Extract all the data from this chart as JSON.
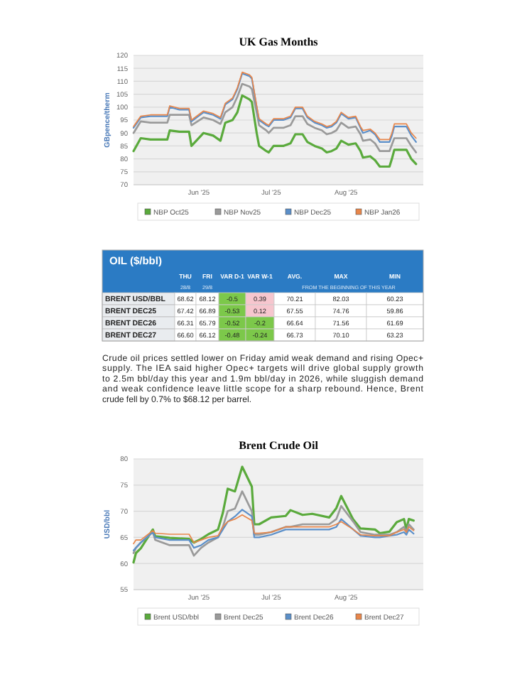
{
  "chart_data": [
    {
      "type": "line",
      "title": "UK Gas Months",
      "ylabel": "GBpence/therm",
      "ylim": [
        70,
        120
      ],
      "yticks": [
        70,
        75,
        80,
        85,
        90,
        95,
        100,
        105,
        110,
        115,
        120
      ],
      "xlim": [
        "2025-05-05",
        "2025-09-02"
      ],
      "xticks": [
        {
          "value": "2025-06-01",
          "label": "Jun '25"
        },
        {
          "value": "2025-07-01",
          "label": "Jul '25"
        },
        {
          "value": "2025-08-01",
          "label": "Aug '25"
        }
      ],
      "grid": "y",
      "legend": "bottom",
      "line_style": "solid",
      "marker": "none",
      "x": [
        "2025-05-05",
        "2025-05-08",
        "2025-05-12",
        "2025-05-19",
        "2025-05-20",
        "2025-05-24",
        "2025-05-28",
        "2025-05-29",
        "2025-06-03",
        "2025-06-07",
        "2025-06-10",
        "2025-06-12",
        "2025-06-15",
        "2025-06-17",
        "2025-06-19",
        "2025-06-22",
        "2025-06-23",
        "2025-06-25",
        "2025-06-26",
        "2025-06-29",
        "2025-06-30",
        "2025-07-02",
        "2025-07-06",
        "2025-07-09",
        "2025-07-11",
        "2025-07-14",
        "2025-07-16",
        "2025-07-19",
        "2025-07-22",
        "2025-07-24",
        "2025-07-26",
        "2025-07-28",
        "2025-07-30",
        "2025-08-02",
        "2025-08-05",
        "2025-08-07",
        "2025-08-08",
        "2025-08-11",
        "2025-08-13",
        "2025-08-15",
        "2025-08-19",
        "2025-08-20",
        "2025-08-21",
        "2025-08-26",
        "2025-08-28",
        "2025-08-30"
      ],
      "series": [
        {
          "name": "NBP Oct25",
          "color": "#5aaa3c",
          "values": [
            83,
            88,
            87.5,
            87.5,
            91,
            90.5,
            90.5,
            85,
            90,
            89,
            87,
            94,
            95,
            98,
            104.5,
            103,
            102,
            90,
            85,
            83,
            82.5,
            85,
            85,
            86,
            89.5,
            89.5,
            86.5,
            85,
            84,
            82.5,
            83,
            84,
            87,
            85.5,
            86,
            83,
            80.5,
            81,
            79.5,
            77,
            77,
            80,
            83.5,
            83.5,
            80,
            78
          ]
        },
        {
          "name": "NBP Nov25",
          "color": "#9a9a9a",
          "values": [
            90,
            94.5,
            94,
            94,
            97,
            97,
            97,
            93,
            96,
            95,
            93.5,
            98,
            100,
            104,
            109,
            108,
            107,
            98,
            93,
            91,
            90,
            92,
            92,
            93,
            96.5,
            96.5,
            93.5,
            92,
            91,
            89.5,
            90,
            91,
            94,
            92,
            92.5,
            89.5,
            87,
            87.5,
            86,
            83,
            83,
            85.5,
            88,
            88,
            85,
            82.5
          ]
        },
        {
          "name": "NBP Dec25",
          "color": "#5b8fc9",
          "values": [
            92,
            96,
            96.5,
            96.5,
            100,
            99,
            99,
            94.5,
            98,
            97,
            95.5,
            101,
            103,
            107,
            113,
            112,
            111,
            100,
            95,
            93,
            92.5,
            95,
            95,
            96,
            99.5,
            99.5,
            96,
            94,
            93,
            92,
            92.5,
            94,
            97.5,
            95.5,
            96,
            92,
            90,
            91,
            89.5,
            86.5,
            86.5,
            89,
            92.5,
            92.5,
            89,
            86.5
          ]
        },
        {
          "name": "NBP Jan26",
          "color": "#e8864a",
          "values": [
            92.5,
            96.5,
            97,
            97,
            100.5,
            99.5,
            99.5,
            95,
            98.5,
            97.5,
            96,
            101.5,
            103.5,
            107.5,
            113.5,
            112.5,
            111.5,
            100.5,
            95.5,
            93.5,
            93,
            95.5,
            95.5,
            96.5,
            100,
            100,
            96.5,
            94.5,
            93.5,
            92.5,
            93,
            94.5,
            98,
            96,
            96.5,
            92.5,
            91,
            91.5,
            90,
            87.5,
            87.5,
            90,
            93.5,
            93.5,
            90,
            88
          ]
        }
      ]
    },
    {
      "type": "other",
      "title": "OIL ($/bbl)",
      "categories": [
        "THU",
        "FRI",
        "VAR D-1",
        "VAR W-1",
        "AVG.",
        "MAX",
        "MIN"
      ],
      "y_categories": [
        "BRENT USD/BBL",
        "BRENT DEC25",
        "BRENT DEC26",
        "BRENT DEC27"
      ],
      "cell_labels": [
        [
          "68.62",
          "68.12",
          "-0.5",
          "0.39",
          "70.21",
          "82.03",
          "60.23"
        ],
        [
          "67.42",
          "66.89",
          "-0.53",
          "0.12",
          "67.55",
          "74.76",
          "59.86"
        ],
        [
          "66.31",
          "65.79",
          "-0.52",
          "-0.2",
          "66.64",
          "71.56",
          "61.69"
        ],
        [
          "66.60",
          "66.12",
          "-0.48",
          "-0.24",
          "66.73",
          "70.10",
          "63.23"
        ]
      ],
      "colors": [
        [
          "#ffffff",
          "#ffffff",
          "#7cc84a",
          "#f6c6ce",
          "#ffffff",
          "#ffffff",
          "#ffffff"
        ],
        [
          "#ffffff",
          "#ffffff",
          "#7cc84a",
          "#f6c6ce",
          "#ffffff",
          "#ffffff",
          "#ffffff"
        ],
        [
          "#ffffff",
          "#ffffff",
          "#7cc84a",
          "#7cc84a",
          "#ffffff",
          "#ffffff",
          "#ffffff"
        ],
        [
          "#ffffff",
          "#ffffff",
          "#7cc84a",
          "#7cc84a",
          "#ffffff",
          "#ffffff",
          "#ffffff"
        ]
      ],
      "annotations": [
        {
          "text": "28/8",
          "x": "THU"
        },
        {
          "text": "29/8",
          "x": "FRI"
        },
        {
          "text": "FROM THE BEGINNING OF THIS YEAR",
          "x": "AVG."
        },
        "Crude oil prices settled lower on Friday amid weak demand and rising Opec+ supply. The IEA said higher Opec+ targets will drive global supply growth to 2.5m bbl/day this year and 1.9m bbl/day in 2026, while sluggish demand and weak confidence leave little scope for a sharp rebound. Hence, Brent crude fell by 0.7% to $68.12 per barrel."
      ]
    },
    {
      "type": "line",
      "title": "Brent Crude Oil",
      "ylabel": "USD/bbl",
      "ylim": [
        55,
        80
      ],
      "yticks": [
        55,
        60,
        65,
        70,
        75,
        80
      ],
      "xlim": [
        "2025-05-05",
        "2025-09-02"
      ],
      "xticks": [
        {
          "value": "2025-06-01",
          "label": "Jun '25"
        },
        {
          "value": "2025-07-01",
          "label": "Jul '25"
        },
        {
          "value": "2025-08-01",
          "label": "Aug '25"
        }
      ],
      "grid": "y",
      "legend": "bottom",
      "line_style": "solid",
      "marker": "none",
      "x": [
        "2025-05-05",
        "2025-05-06",
        "2025-05-08",
        "2025-05-13",
        "2025-05-14",
        "2025-05-20",
        "2025-05-28",
        "2025-05-30",
        "2025-06-02",
        "2025-06-05",
        "2025-06-09",
        "2025-06-11",
        "2025-06-13",
        "2025-06-16",
        "2025-06-19",
        "2025-06-23",
        "2025-06-24",
        "2025-06-26",
        "2025-07-01",
        "2025-07-07",
        "2025-07-09",
        "2025-07-14",
        "2025-07-18",
        "2025-07-25",
        "2025-07-28",
        "2025-07-30",
        "2025-08-04",
        "2025-08-07",
        "2025-08-13",
        "2025-08-15",
        "2025-08-19",
        "2025-08-22",
        "2025-08-25",
        "2025-08-26",
        "2025-08-27",
        "2025-08-29"
      ],
      "series": [
        {
          "name": "Brent USD/bbl",
          "color": "#5aaa3c",
          "values": [
            60.2,
            62,
            62.9,
            66.5,
            65.2,
            64.9,
            64.7,
            64,
            64.7,
            65.6,
            66.5,
            69.7,
            74.3,
            73.8,
            78.5,
            74.7,
            67.5,
            67.5,
            68.8,
            69.1,
            70.2,
            69.3,
            69.5,
            68.8,
            70.6,
            72.9,
            68.4,
            66.7,
            66.5,
            65.8,
            66.1,
            67.9,
            68.5,
            66.5,
            68.5,
            68.2
          ]
        },
        {
          "name": "Brent Dec25",
          "color": "#9a9a9a",
          "values": [
            62,
            63,
            64,
            66,
            64.5,
            63.5,
            63.5,
            61.5,
            63,
            64,
            65,
            67,
            70,
            70.5,
            73.8,
            70,
            65.5,
            65.5,
            66,
            67,
            67,
            67.5,
            67.5,
            67.5,
            68.5,
            71,
            68,
            66,
            65.5,
            65.5,
            65.5,
            66,
            67,
            66,
            67.5,
            66.5
          ]
        },
        {
          "name": "Brent Dec26",
          "color": "#5b8fc9",
          "values": [
            62.5,
            63,
            64,
            66,
            65,
            64.5,
            64.5,
            63,
            63.5,
            64.5,
            65,
            66.5,
            68,
            69,
            70.3,
            69,
            65,
            65,
            65.5,
            66.5,
            66.5,
            66.5,
            66.5,
            66.5,
            67,
            68.5,
            66.5,
            65.3,
            65,
            65,
            65.3,
            65.5,
            66,
            65.5,
            66.5,
            65.7
          ]
        },
        {
          "name": "Brent Dec27",
          "color": "#e8864a",
          "values": [
            63.8,
            64.5,
            64.5,
            66.3,
            65.8,
            65.6,
            65.6,
            64,
            64.5,
            65,
            65.3,
            67,
            68,
            68.5,
            69.3,
            68.2,
            65.8,
            65.8,
            66,
            67,
            67,
            67,
            67,
            67,
            67.5,
            68,
            66.5,
            65.5,
            65.3,
            65.3,
            65.3,
            66,
            66.5,
            66,
            67,
            66.3
          ]
        }
      ]
    }
  ]
}
